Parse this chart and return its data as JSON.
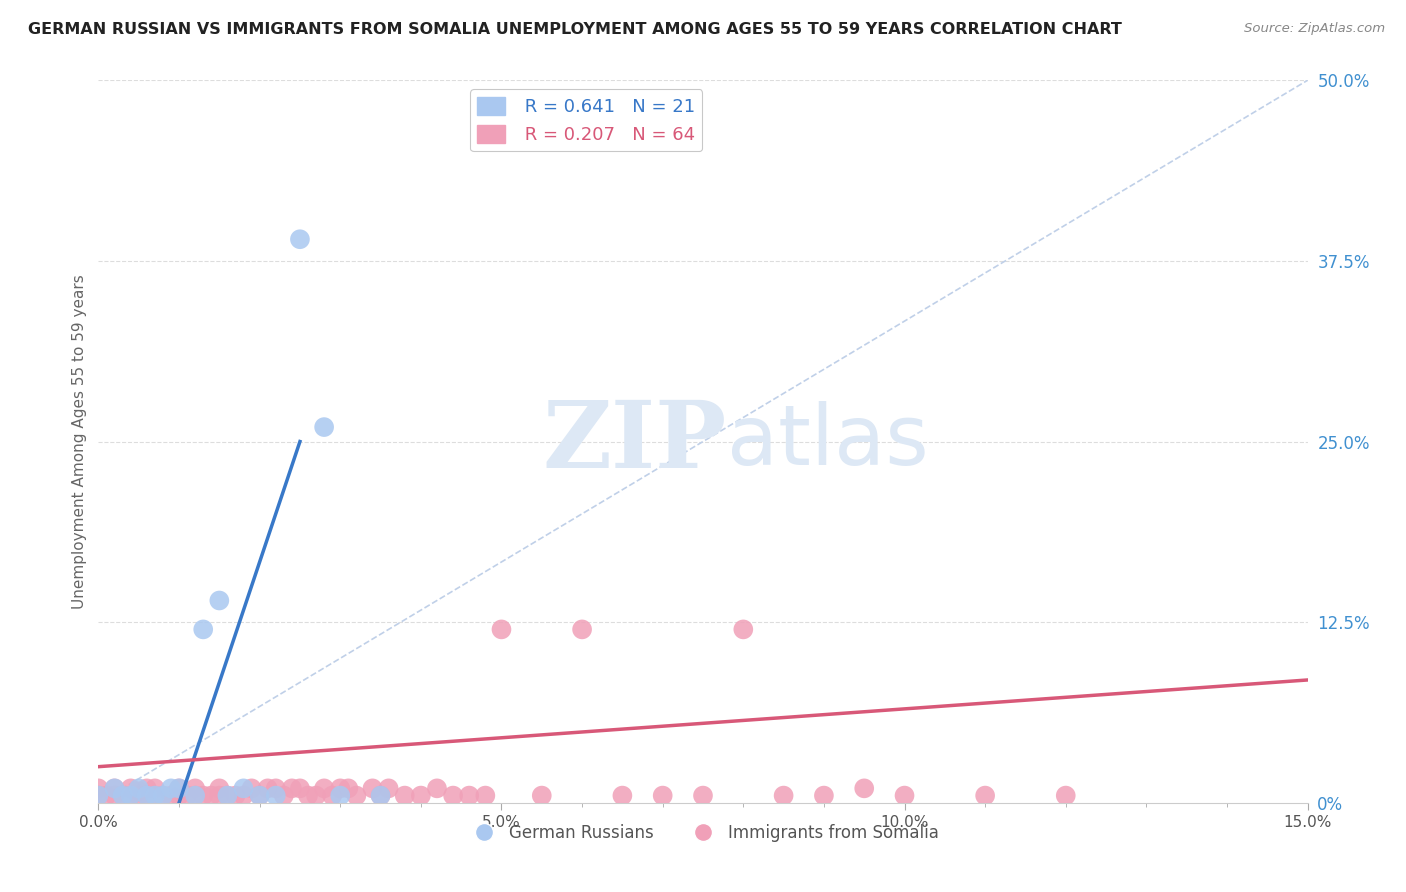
{
  "title": "GERMAN RUSSIAN VS IMMIGRANTS FROM SOMALIA UNEMPLOYMENT AMONG AGES 55 TO 59 YEARS CORRELATION CHART",
  "source": "Source: ZipAtlas.com",
  "ylabel": "Unemployment Among Ages 55 to 59 years",
  "xlim": [
    0.0,
    0.15
  ],
  "ylim": [
    0.0,
    0.5
  ],
  "xticks_major": [
    0.0,
    0.05,
    0.1,
    0.15
  ],
  "xticklabels": [
    "0.0%",
    "",
    "",
    ""
  ],
  "yticks_right": [
    0.0,
    0.125,
    0.25,
    0.375,
    0.5
  ],
  "yticklabels_right": [
    "0%",
    "12.5%",
    "25.0%",
    "37.5%",
    "50.0%"
  ],
  "blue_color": "#aac8f0",
  "pink_color": "#f0a0b8",
  "blue_line_color": "#3878c8",
  "pink_line_color": "#d85878",
  "diag_line_color": "#c0d0e8",
  "watermark_zip": "ZIP",
  "watermark_atlas": "atlas",
  "R_blue": 0.641,
  "N_blue": 21,
  "R_pink": 0.207,
  "N_pink": 64,
  "blue_points_x": [
    0.0,
    0.002,
    0.003,
    0.004,
    0.005,
    0.006,
    0.007,
    0.008,
    0.009,
    0.01,
    0.012,
    0.013,
    0.015,
    0.016,
    0.018,
    0.02,
    0.022,
    0.025,
    0.028,
    0.03,
    0.035
  ],
  "blue_points_y": [
    0.005,
    0.01,
    0.005,
    0.005,
    0.01,
    0.005,
    0.005,
    0.005,
    0.01,
    0.01,
    0.005,
    0.12,
    0.14,
    0.005,
    0.01,
    0.005,
    0.005,
    0.39,
    0.26,
    0.005,
    0.005
  ],
  "pink_points_x": [
    0.0,
    0.0,
    0.001,
    0.002,
    0.002,
    0.003,
    0.004,
    0.004,
    0.005,
    0.005,
    0.006,
    0.006,
    0.007,
    0.007,
    0.008,
    0.009,
    0.01,
    0.01,
    0.011,
    0.012,
    0.012,
    0.013,
    0.014,
    0.015,
    0.015,
    0.016,
    0.017,
    0.018,
    0.019,
    0.02,
    0.021,
    0.022,
    0.023,
    0.024,
    0.025,
    0.026,
    0.027,
    0.028,
    0.029,
    0.03,
    0.031,
    0.032,
    0.034,
    0.035,
    0.036,
    0.038,
    0.04,
    0.042,
    0.044,
    0.046,
    0.048,
    0.05,
    0.055,
    0.06,
    0.065,
    0.07,
    0.075,
    0.08,
    0.085,
    0.09,
    0.095,
    0.1,
    0.11,
    0.12
  ],
  "pink_points_y": [
    0.005,
    0.01,
    0.005,
    0.005,
    0.01,
    0.005,
    0.005,
    0.01,
    0.005,
    0.008,
    0.005,
    0.01,
    0.005,
    0.01,
    0.005,
    0.005,
    0.005,
    0.01,
    0.005,
    0.005,
    0.01,
    0.005,
    0.005,
    0.005,
    0.01,
    0.005,
    0.005,
    0.005,
    0.01,
    0.005,
    0.01,
    0.01,
    0.005,
    0.01,
    0.01,
    0.005,
    0.005,
    0.01,
    0.005,
    0.01,
    0.01,
    0.005,
    0.01,
    0.005,
    0.01,
    0.005,
    0.005,
    0.01,
    0.005,
    0.005,
    0.005,
    0.12,
    0.005,
    0.12,
    0.005,
    0.005,
    0.005,
    0.12,
    0.005,
    0.005,
    0.01,
    0.005,
    0.005,
    0.005
  ]
}
